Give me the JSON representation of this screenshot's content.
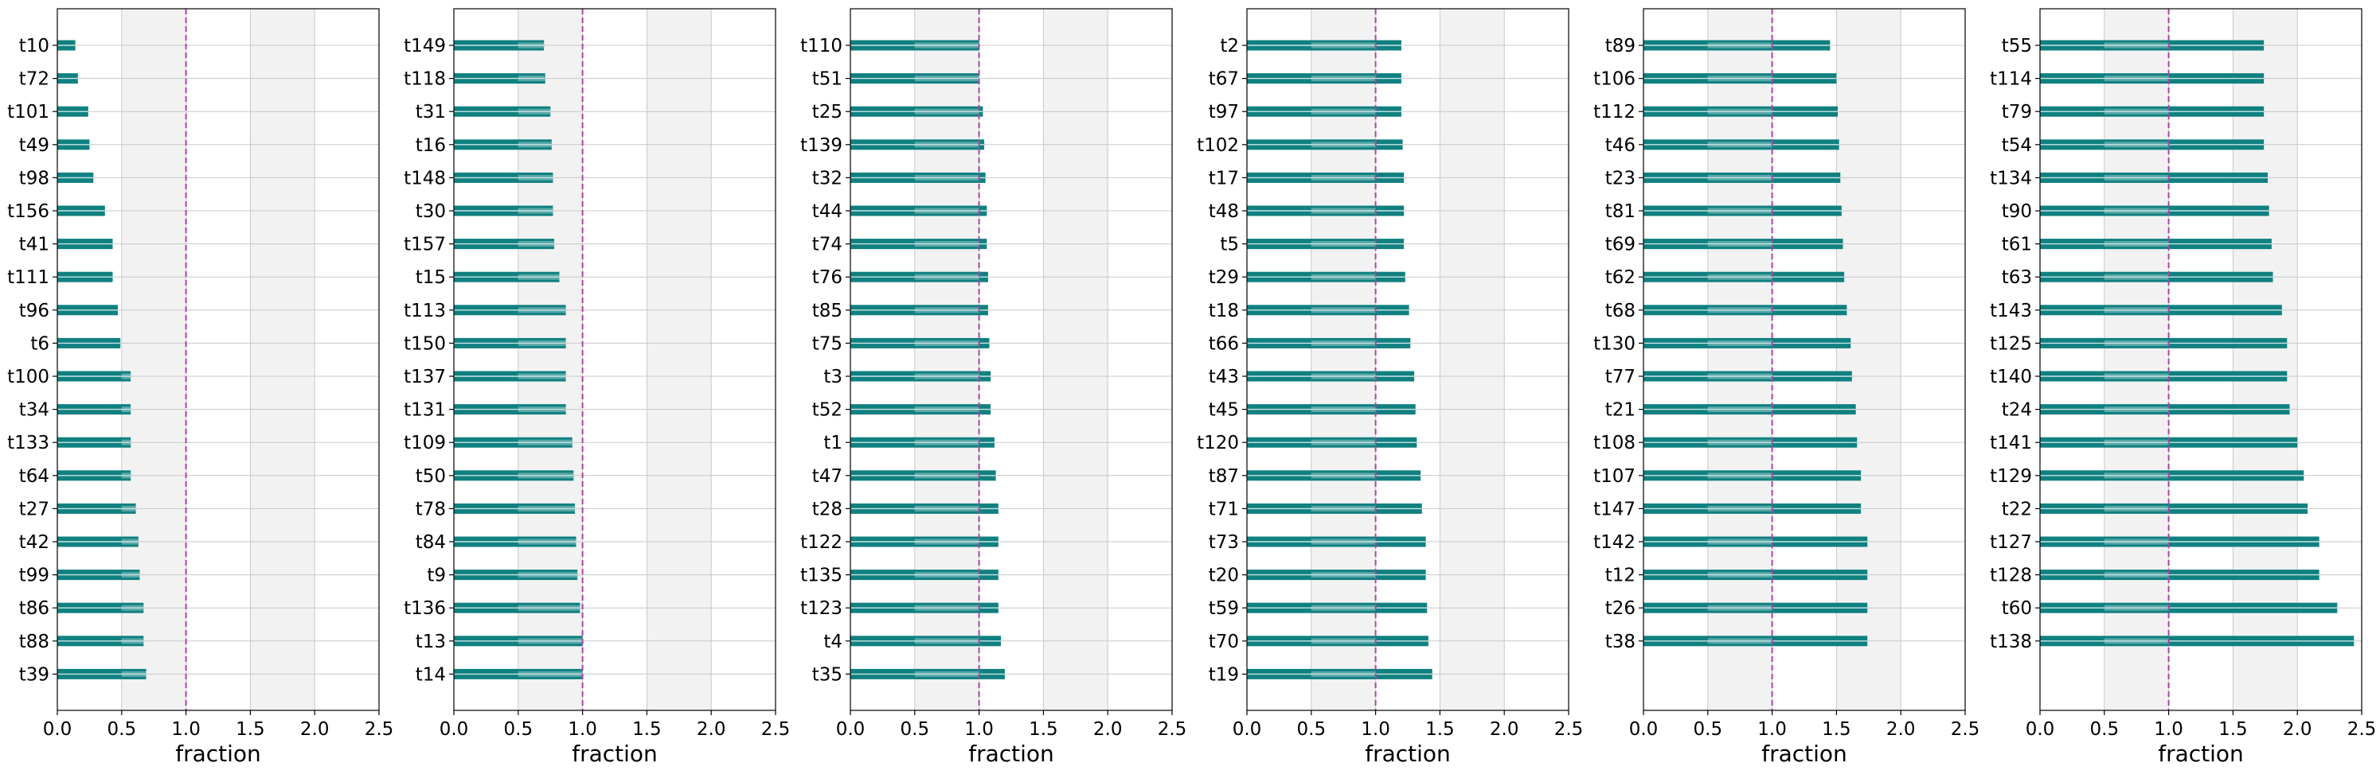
{
  "chart_data": [
    {
      "type": "bar",
      "orientation": "horizontal",
      "xlabel": "fraction",
      "xlim": [
        0,
        2.5
      ],
      "xticks": [
        "0.0",
        "0.5",
        "1.0",
        "1.5",
        "2.0",
        "2.5"
      ],
      "reference_line": 1.0,
      "shaded_bands": [
        [
          0.5,
          1.0
        ],
        [
          1.5,
          2.0
        ]
      ],
      "grid": true,
      "categories": [
        "t10",
        "t72",
        "t101",
        "t49",
        "t98",
        "t156",
        "t41",
        "t111",
        "t96",
        "t6",
        "t100",
        "t34",
        "t133",
        "t64",
        "t27",
        "t42",
        "t99",
        "t86",
        "t88",
        "t39"
      ],
      "values": [
        0.14,
        0.16,
        0.24,
        0.25,
        0.28,
        0.37,
        0.43,
        0.43,
        0.47,
        0.49,
        0.57,
        0.57,
        0.57,
        0.57,
        0.61,
        0.63,
        0.64,
        0.67,
        0.67,
        0.69
      ]
    },
    {
      "type": "bar",
      "orientation": "horizontal",
      "xlabel": "fraction",
      "xlim": [
        0,
        2.5
      ],
      "xticks": [
        "0.0",
        "0.5",
        "1.0",
        "1.5",
        "2.0",
        "2.5"
      ],
      "reference_line": 1.0,
      "shaded_bands": [
        [
          0.5,
          1.0
        ],
        [
          1.5,
          2.0
        ]
      ],
      "grid": true,
      "categories": [
        "t149",
        "t118",
        "t31",
        "t16",
        "t148",
        "t30",
        "t157",
        "t15",
        "t113",
        "t150",
        "t137",
        "t131",
        "t109",
        "t50",
        "t78",
        "t84",
        "t9",
        "t136",
        "t13",
        "t14"
      ],
      "values": [
        0.7,
        0.71,
        0.75,
        0.76,
        0.77,
        0.77,
        0.78,
        0.82,
        0.87,
        0.87,
        0.87,
        0.87,
        0.92,
        0.93,
        0.94,
        0.95,
        0.96,
        0.98,
        1.0,
        1.0
      ]
    },
    {
      "type": "bar",
      "orientation": "horizontal",
      "xlabel": "fraction",
      "xlim": [
        0,
        2.5
      ],
      "xticks": [
        "0.0",
        "0.5",
        "1.0",
        "1.5",
        "2.0",
        "2.5"
      ],
      "reference_line": 1.0,
      "shaded_bands": [
        [
          0.5,
          1.0
        ],
        [
          1.5,
          2.0
        ]
      ],
      "grid": true,
      "categories": [
        "t110",
        "t51",
        "t25",
        "t139",
        "t32",
        "t44",
        "t74",
        "t76",
        "t85",
        "t75",
        "t3",
        "t52",
        "t1",
        "t47",
        "t28",
        "t122",
        "t135",
        "t123",
        "t4",
        "t35"
      ],
      "values": [
        1.0,
        1.0,
        1.03,
        1.04,
        1.05,
        1.06,
        1.06,
        1.07,
        1.07,
        1.08,
        1.09,
        1.09,
        1.12,
        1.13,
        1.15,
        1.15,
        1.15,
        1.15,
        1.17,
        1.2
      ]
    },
    {
      "type": "bar",
      "orientation": "horizontal",
      "xlabel": "fraction",
      "xlim": [
        0,
        2.5
      ],
      "xticks": [
        "0.0",
        "0.5",
        "1.0",
        "1.5",
        "2.0",
        "2.5"
      ],
      "reference_line": 1.0,
      "shaded_bands": [
        [
          0.5,
          1.0
        ],
        [
          1.5,
          2.0
        ]
      ],
      "grid": true,
      "categories": [
        "t2",
        "t67",
        "t97",
        "t102",
        "t17",
        "t48",
        "t5",
        "t29",
        "t18",
        "t66",
        "t43",
        "t45",
        "t120",
        "t87",
        "t71",
        "t73",
        "t20",
        "t59",
        "t70",
        "t19"
      ],
      "values": [
        1.2,
        1.2,
        1.2,
        1.21,
        1.22,
        1.22,
        1.22,
        1.23,
        1.26,
        1.27,
        1.3,
        1.31,
        1.32,
        1.35,
        1.36,
        1.39,
        1.39,
        1.4,
        1.41,
        1.44
      ]
    },
    {
      "type": "bar",
      "orientation": "horizontal",
      "xlabel": "fraction",
      "xlim": [
        0,
        2.5
      ],
      "xticks": [
        "0.0",
        "0.5",
        "1.0",
        "1.5",
        "2.0",
        "2.5"
      ],
      "reference_line": 1.0,
      "shaded_bands": [
        [
          0.5,
          1.0
        ],
        [
          1.5,
          2.0
        ]
      ],
      "grid": true,
      "categories": [
        "t89",
        "t106",
        "t112",
        "t46",
        "t23",
        "t81",
        "t69",
        "t62",
        "t68",
        "t130",
        "t77",
        "t21",
        "t108",
        "t107",
        "t147",
        "t142",
        "t12",
        "t26",
        "t38"
      ],
      "values": [
        1.45,
        1.5,
        1.51,
        1.52,
        1.53,
        1.54,
        1.55,
        1.56,
        1.58,
        1.61,
        1.62,
        1.65,
        1.66,
        1.69,
        1.69,
        1.74,
        1.74,
        1.74,
        1.74
      ]
    },
    {
      "type": "bar",
      "orientation": "horizontal",
      "xlabel": "fraction",
      "xlim": [
        0,
        2.5
      ],
      "xticks": [
        "0.0",
        "0.5",
        "1.0",
        "1.5",
        "2.0",
        "2.5"
      ],
      "reference_line": 1.0,
      "shaded_bands": [
        [
          0.5,
          1.0
        ],
        [
          1.5,
          2.0
        ]
      ],
      "grid": true,
      "categories": [
        "t55",
        "t114",
        "t79",
        "t54",
        "t134",
        "t90",
        "t61",
        "t63",
        "t143",
        "t125",
        "t140",
        "t24",
        "t141",
        "t129",
        "t22",
        "t127",
        "t128",
        "t60",
        "t138"
      ],
      "values": [
        1.74,
        1.74,
        1.74,
        1.74,
        1.77,
        1.78,
        1.8,
        1.81,
        1.88,
        1.92,
        1.92,
        1.94,
        2.0,
        2.05,
        2.08,
        2.17,
        2.17,
        2.31,
        2.44
      ]
    }
  ],
  "colors": {
    "bar": "#108080",
    "bar_highlight": "#5aa8a8",
    "reference_line": "#aa44aa",
    "band": "#f2f2f2",
    "grid": "#c8c8c8"
  }
}
